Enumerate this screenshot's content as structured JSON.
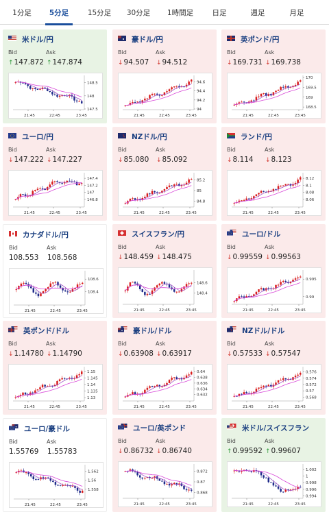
{
  "tabs": [
    {
      "label": "1分足",
      "active": false
    },
    {
      "label": "5分足",
      "active": true
    },
    {
      "label": "15分足",
      "active": false
    },
    {
      "label": "30分足",
      "active": false
    },
    {
      "label": "1時間足",
      "active": false
    },
    {
      "label": "日足",
      "active": false
    },
    {
      "label": "週足",
      "active": false
    },
    {
      "label": "月足",
      "active": false
    }
  ],
  "colors": {
    "rise": "#d81e1e",
    "fall": "#1f2a8a",
    "ma_short": "#9a3fc0",
    "ma_long": "#d848d8",
    "tab_active": "#1a4e9c"
  },
  "bid_label": "Bid",
  "ask_label": "Ask",
  "cards": [
    {
      "pair": "米ドル/円",
      "flag": "us-flag",
      "trend": "up",
      "bid": "147.872",
      "ask": "147.874",
      "chart": {
        "ylim": [
          147.5,
          148.7
        ],
        "yticks": [
          "148.5",
          "148",
          "147.5"
        ],
        "xticks": [
          "21:45",
          "22:45",
          "23:45"
        ],
        "path": "down"
      }
    },
    {
      "pair": "豪ドル/円",
      "flag": "au-flag",
      "trend": "down",
      "bid": "94.507",
      "ask": "94.512",
      "chart": {
        "ylim": [
          94.0,
          94.7
        ],
        "yticks": [
          "94.6",
          "94.4",
          "94.2",
          "94"
        ],
        "xticks": [
          "21:45",
          "22:45",
          "23:45"
        ],
        "path": "up"
      }
    },
    {
      "pair": "英ポンド/円",
      "flag": "gb-flag",
      "trend": "down",
      "bid": "169.731",
      "ask": "169.738",
      "chart": {
        "ylim": [
          168.4,
          170.0
        ],
        "yticks": [
          "170",
          "169.5",
          "169",
          "168.5"
        ],
        "xticks": [
          "21:45",
          "22:45",
          "23:45"
        ],
        "path": "up"
      }
    },
    {
      "pair": "ユーロ/円",
      "flag": "eu-flag",
      "trend": "down",
      "bid": "147.222",
      "ask": "147.227",
      "chart": {
        "ylim": [
          146.6,
          147.5
        ],
        "yticks": [
          "147.4",
          "147.2",
          "147",
          "146.8"
        ],
        "xticks": [
          "21:45",
          "22:45",
          "23:45"
        ],
        "path": "upflat"
      }
    },
    {
      "pair": "NZドル/円",
      "flag": "nz-flag",
      "trend": "down",
      "bid": "85.080",
      "ask": "85.092",
      "chart": {
        "ylim": [
          84.7,
          85.3
        ],
        "yticks": [
          "85.2",
          "85",
          "84.8"
        ],
        "xticks": [
          "21:45",
          "22:45",
          "23:45"
        ],
        "path": "up"
      }
    },
    {
      "pair": "ランド/円",
      "flag": "za-flag",
      "trend": "down",
      "bid": "8.114",
      "ask": "8.123",
      "chart": {
        "ylim": [
          8.04,
          8.13
        ],
        "yticks": [
          "8.12",
          "8.1",
          "8.08",
          "8.06"
        ],
        "xticks": [
          "21:45",
          "22:45",
          "23:45"
        ],
        "path": "up"
      }
    },
    {
      "pair": "カナダドル/円",
      "flag": "ca-flag",
      "trend": "none",
      "bid": "108.553",
      "ask": "108.568",
      "chart": {
        "ylim": [
          108.2,
          108.7
        ],
        "yticks": [
          "108.6",
          "108.4"
        ],
        "xticks": [
          "21:45",
          "22:45",
          "23:45"
        ],
        "path": "choppy"
      }
    },
    {
      "pair": "スイスフラン/円",
      "flag": "ch-flag",
      "trend": "down",
      "bid": "148.459",
      "ask": "148.475",
      "chart": {
        "ylim": [
          148.2,
          148.8
        ],
        "yticks": [
          "148.6",
          "148.4"
        ],
        "xticks": [
          "21:45",
          "22:45",
          "23:45"
        ],
        "path": "choppy"
      }
    },
    {
      "pair": "ユーロ/ドル",
      "flag": "eu-us-flag",
      "trend": "down",
      "bid": "0.99559",
      "ask": "0.99563",
      "chart": {
        "ylim": [
          0.988,
          0.997
        ],
        "yticks": [
          "0.995",
          "0.99"
        ],
        "xticks": [
          "21:45",
          "22:45",
          "23:45"
        ],
        "path": "up"
      }
    },
    {
      "pair": "英ポンド/ドル",
      "flag": "gb-us-flag",
      "trend": "down",
      "bid": "1.14780",
      "ask": "1.14790",
      "chart": {
        "ylim": [
          1.128,
          1.152
        ],
        "yticks": [
          "1.15",
          "1.145",
          "1.14",
          "1.135",
          "1.13"
        ],
        "xticks": [
          "21:45",
          "22:45",
          "23:45"
        ],
        "path": "up"
      }
    },
    {
      "pair": "豪ドル/ドル",
      "flag": "au-us-flag",
      "trend": "down",
      "bid": "0.63908",
      "ask": "0.63917",
      "chart": {
        "ylim": [
          0.63,
          0.641
        ],
        "yticks": [
          "0.64",
          "0.638",
          "0.636",
          "0.634",
          "0.632"
        ],
        "xticks": [
          "21:45",
          "22:45",
          "23:45"
        ],
        "path": "up"
      }
    },
    {
      "pair": "NZドル/ドル",
      "flag": "nz-us-flag",
      "trend": "down",
      "bid": "0.57533",
      "ask": "0.57547",
      "chart": {
        "ylim": [
          0.567,
          0.577
        ],
        "yticks": [
          "0.576",
          "0.574",
          "0.572",
          "0.57",
          "0.568"
        ],
        "xticks": [
          "21:45",
          "22:45",
          "23:45"
        ],
        "path": "up"
      }
    },
    {
      "pair": "ユーロ/豪ドル",
      "flag": "eu-au-flag",
      "trend": "none",
      "bid": "1.55769",
      "ask": "1.55783",
      "chart": {
        "ylim": [
          1.556,
          1.563
        ],
        "yticks": [
          "1.562",
          "1.56",
          "1.558"
        ],
        "xticks": [
          "21:45",
          "22:45",
          "23:45"
        ],
        "path": "down"
      }
    },
    {
      "pair": "ユーロ/英ポンド",
      "flag": "eu-gb-flag",
      "trend": "down",
      "bid": "0.86732",
      "ask": "0.86740",
      "chart": {
        "ylim": [
          0.867,
          0.873
        ],
        "yticks": [
          "0.872",
          "0.87",
          "0.868"
        ],
        "xticks": [
          "21:45",
          "22:45",
          "23:45"
        ],
        "path": "down"
      }
    },
    {
      "pair": "米ドル/スイスフラン",
      "flag": "us-ch-flag",
      "trend": "up",
      "bid": "0.99592",
      "ask": "0.99607",
      "chart": {
        "ylim": [
          0.9935,
          1.003
        ],
        "yticks": [
          "1.002",
          "1",
          "0.998",
          "0.996",
          "0.994"
        ],
        "xticks": [
          "21:45",
          "22:45",
          "23:45"
        ],
        "path": "vdown"
      }
    }
  ]
}
